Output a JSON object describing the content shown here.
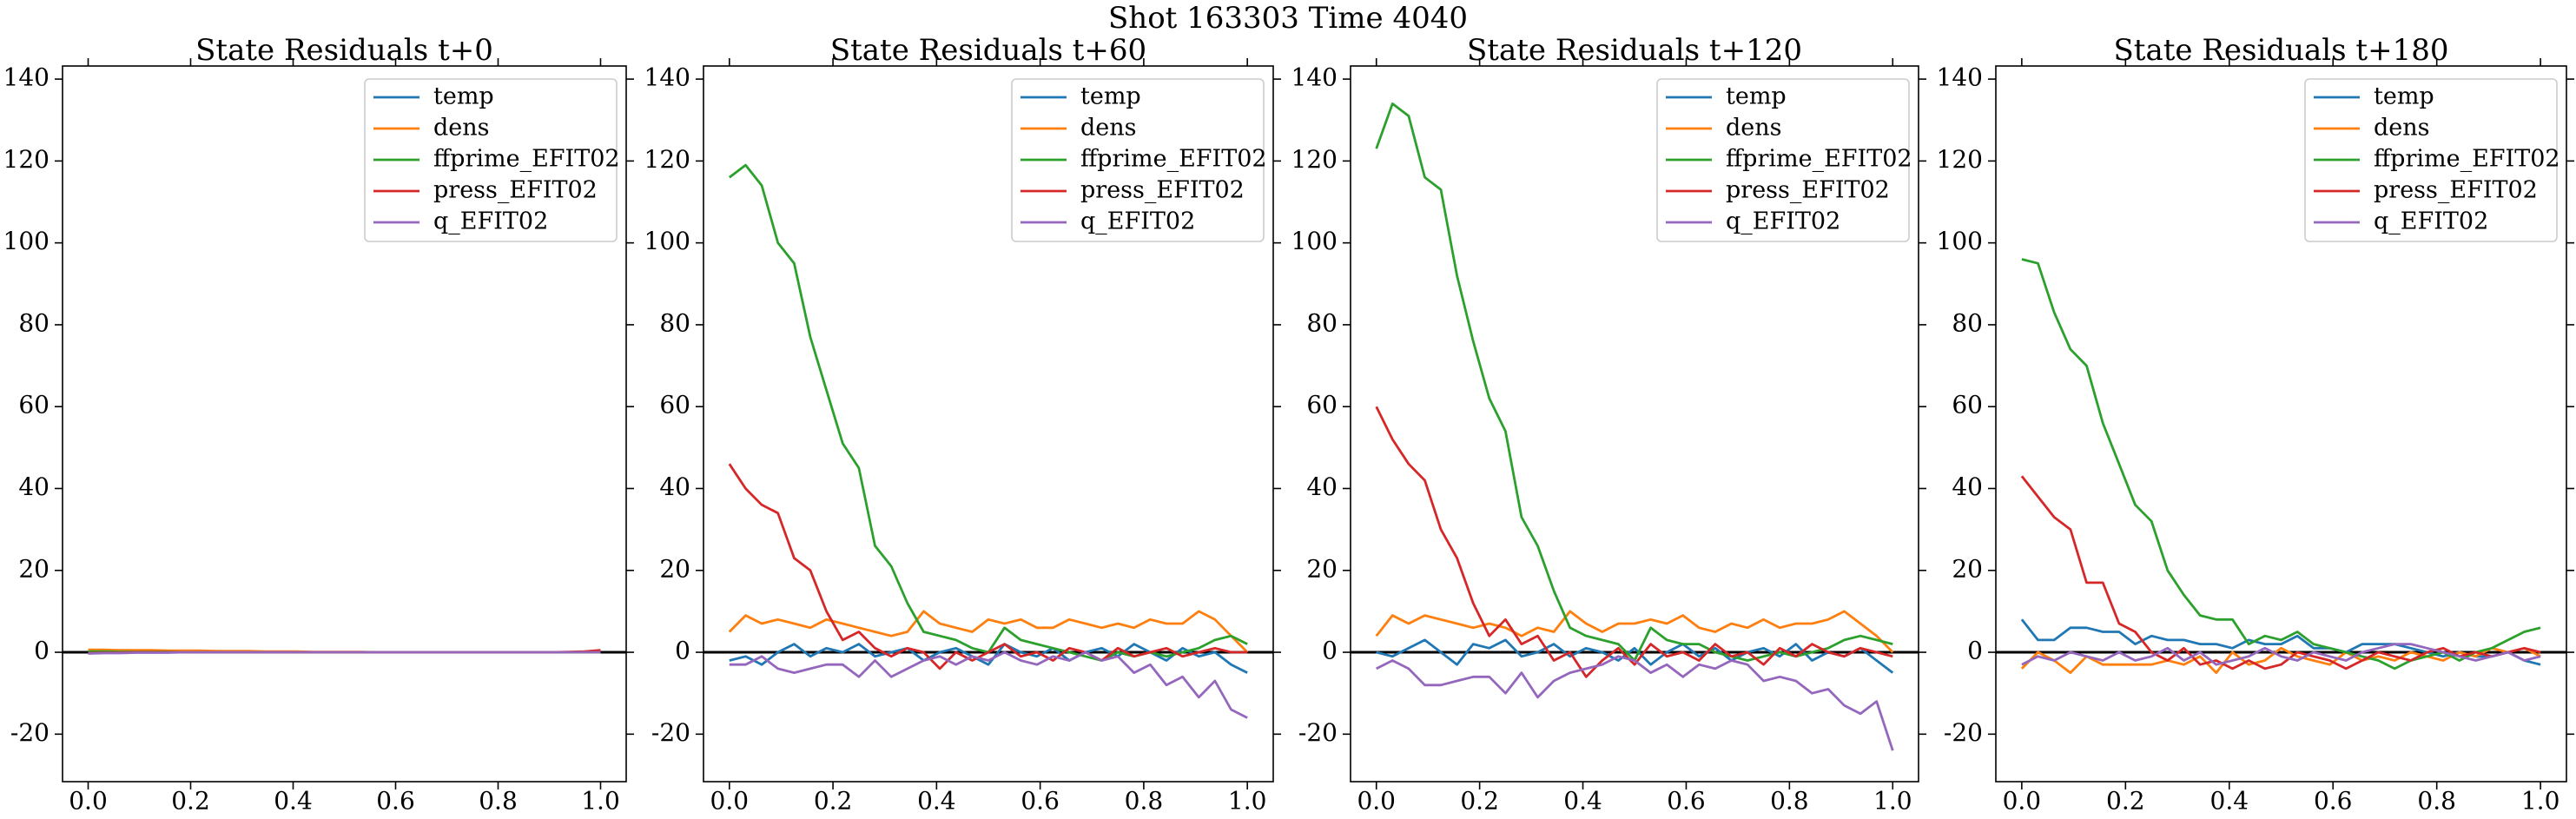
{
  "title": "Shot 163303   Time 4040",
  "chart_data": [
    {
      "type": "line",
      "title": "State Residuals t+0",
      "legend": "upper right",
      "grid": false,
      "hlines": [
        0
      ],
      "xlim": [
        -0.05,
        1.05
      ],
      "ylim": [
        -31.6,
        143.2
      ],
      "xticks": [
        {
          "value": 0,
          "label": "0.0"
        },
        0.2,
        0.4,
        0.6,
        0.8,
        {
          "value": 1,
          "label": "1.0"
        }
      ],
      "yticks": [
        -20,
        0,
        20,
        40,
        60,
        80,
        100,
        120,
        140
      ],
      "x": [
        0,
        0.03125,
        0.0625,
        0.09375,
        0.125,
        0.15625,
        0.1875,
        0.21875,
        0.25,
        0.28125,
        0.3125,
        0.34375,
        0.375,
        0.40625,
        0.4375,
        0.46875,
        0.5,
        0.53125,
        0.5625,
        0.59375,
        0.625,
        0.65625,
        0.6875,
        0.71875,
        0.75,
        0.78125,
        0.8125,
        0.84375,
        0.875,
        0.90625,
        0.9375,
        0.96875,
        1
      ],
      "series": [
        {
          "name": "temp",
          "color": "#1f77b4",
          "values": [
            0,
            0,
            0,
            0.1,
            0,
            0,
            0,
            0,
            0,
            0,
            0,
            0,
            0,
            0,
            0,
            0,
            0,
            0,
            0,
            0,
            0,
            0,
            0,
            0,
            0,
            0,
            0,
            0,
            0,
            0,
            0,
            0,
            0.2
          ]
        },
        {
          "name": "dens",
          "color": "#ff7f0e",
          "values": [
            0.6,
            0.6,
            0.5,
            0.5,
            0.5,
            0.4,
            0.4,
            0.4,
            0.3,
            0.3,
            0.3,
            0.2,
            0.2,
            0.2,
            0.1,
            0.1,
            0.1,
            0.1,
            0,
            0,
            0,
            0,
            0,
            0,
            0,
            0,
            0,
            0,
            0,
            0,
            0,
            0,
            0
          ]
        },
        {
          "name": "ffprime_EFIT02",
          "color": "#2ca02c",
          "values": [
            0.2,
            0.2,
            0.1,
            0.1,
            0.1,
            0.1,
            0,
            0,
            0,
            0,
            0,
            0,
            0,
            0,
            0,
            0,
            0,
            0,
            0,
            0,
            0,
            0,
            0,
            0,
            0,
            0,
            0,
            0,
            0,
            0,
            0,
            0,
            0
          ]
        },
        {
          "name": "press_EFIT02",
          "color": "#d62728",
          "values": [
            -0.2,
            -0.1,
            -0.1,
            0,
            0,
            0,
            0,
            0,
            0,
            0,
            0,
            0,
            0,
            0,
            0,
            0,
            0,
            0,
            0,
            0,
            0,
            0,
            0,
            0,
            0,
            0,
            0,
            0,
            0,
            0,
            0.1,
            0.2,
            0.5
          ]
        },
        {
          "name": "q_EFIT02",
          "color": "#9467bd",
          "values": [
            -0.3,
            -0.2,
            -0.2,
            -0.1,
            -0.1,
            -0.1,
            0,
            0,
            0,
            0,
            0,
            0,
            0,
            0,
            0,
            0,
            0,
            0,
            0,
            0,
            0,
            0,
            0,
            0,
            0,
            0,
            0,
            0,
            0,
            0,
            0,
            0,
            0
          ]
        }
      ]
    },
    {
      "type": "line",
      "title": "State Residuals t+60",
      "legend": "upper right",
      "grid": false,
      "hlines": [
        0
      ],
      "xlim": [
        -0.05,
        1.05
      ],
      "ylim": [
        -31.6,
        143.2
      ],
      "xticks": [
        {
          "value": 0,
          "label": "0.0"
        },
        0.2,
        0.4,
        0.6,
        0.8,
        {
          "value": 1,
          "label": "1.0"
        }
      ],
      "yticks": [
        -20,
        0,
        20,
        40,
        60,
        80,
        100,
        120,
        140
      ],
      "x": [
        0,
        0.03125,
        0.0625,
        0.09375,
        0.125,
        0.15625,
        0.1875,
        0.21875,
        0.25,
        0.28125,
        0.3125,
        0.34375,
        0.375,
        0.40625,
        0.4375,
        0.46875,
        0.5,
        0.53125,
        0.5625,
        0.59375,
        0.625,
        0.65625,
        0.6875,
        0.71875,
        0.75,
        0.78125,
        0.8125,
        0.84375,
        0.875,
        0.90625,
        0.9375,
        0.96875,
        1
      ],
      "series": [
        {
          "name": "temp",
          "color": "#1f77b4",
          "values": [
            -2,
            -1,
            -3,
            0,
            2,
            -1,
            1,
            0,
            2,
            -1,
            0,
            1,
            -2,
            0,
            1,
            -1,
            -3,
            2,
            0,
            -1,
            1,
            -2,
            0,
            1,
            -1,
            2,
            0,
            -2,
            1,
            -1,
            0,
            -3,
            -5
          ]
        },
        {
          "name": "dens",
          "color": "#ff7f0e",
          "values": [
            5,
            9,
            7,
            8,
            7,
            6,
            8,
            7,
            6,
            5,
            4,
            5,
            10,
            7,
            6,
            5,
            8,
            7,
            8,
            6,
            6,
            8,
            7,
            6,
            7,
            6,
            8,
            7,
            7,
            10,
            8,
            4,
            0
          ]
        },
        {
          "name": "ffprime_EFIT02",
          "color": "#2ca02c",
          "values": [
            116,
            119,
            114,
            100,
            95,
            77,
            64,
            51,
            45,
            26,
            21,
            12,
            5,
            4,
            3,
            1,
            0,
            6,
            3,
            2,
            1,
            0,
            -1,
            -2,
            0,
            -1,
            0,
            -1,
            0,
            1,
            3,
            4,
            2
          ]
        },
        {
          "name": "press_EFIT02",
          "color": "#d62728",
          "values": [
            46,
            40,
            36,
            34,
            23,
            20,
            10,
            3,
            5,
            1,
            -1,
            1,
            0,
            -4,
            0,
            -2,
            0,
            2,
            -1,
            0,
            -2,
            1,
            0,
            -2,
            1,
            -1,
            0,
            1,
            -1,
            0,
            1,
            0,
            0
          ]
        },
        {
          "name": "q_EFIT02",
          "color": "#9467bd",
          "values": [
            -3,
            -3,
            -1,
            -4,
            -5,
            -4,
            -3,
            -3,
            -6,
            -2,
            -6,
            -4,
            -2,
            -1,
            -3,
            -1,
            -2,
            0,
            -2,
            -3,
            -1,
            -2,
            0,
            -2,
            -1,
            -5,
            -3,
            -8,
            -6,
            -11,
            -7,
            -14,
            -16
          ]
        }
      ]
    },
    {
      "type": "line",
      "title": "State Residuals t+120",
      "legend": "upper right",
      "grid": false,
      "hlines": [
        0
      ],
      "xlim": [
        -0.05,
        1.05
      ],
      "ylim": [
        -31.6,
        143.2
      ],
      "xticks": [
        {
          "value": 0,
          "label": "0.0"
        },
        0.2,
        0.4,
        0.6,
        0.8,
        {
          "value": 1,
          "label": "1.0"
        }
      ],
      "yticks": [
        -20,
        0,
        20,
        40,
        60,
        80,
        100,
        120,
        140
      ],
      "x": [
        0,
        0.03125,
        0.0625,
        0.09375,
        0.125,
        0.15625,
        0.1875,
        0.21875,
        0.25,
        0.28125,
        0.3125,
        0.34375,
        0.375,
        0.40625,
        0.4375,
        0.46875,
        0.5,
        0.53125,
        0.5625,
        0.59375,
        0.625,
        0.65625,
        0.6875,
        0.71875,
        0.75,
        0.78125,
        0.8125,
        0.84375,
        0.875,
        0.90625,
        0.9375,
        0.96875,
        1
      ],
      "series": [
        {
          "name": "temp",
          "color": "#1f77b4",
          "values": [
            0,
            -1,
            1,
            3,
            0,
            -3,
            2,
            1,
            3,
            -1,
            0,
            2,
            -1,
            1,
            0,
            -2,
            1,
            -3,
            0,
            2,
            -1,
            1,
            -2,
            0,
            1,
            -1,
            2,
            -2,
            0,
            -1,
            1,
            -2,
            -5
          ]
        },
        {
          "name": "dens",
          "color": "#ff7f0e",
          "values": [
            4,
            9,
            7,
            9,
            8,
            7,
            6,
            7,
            6,
            4,
            6,
            5,
            10,
            7,
            5,
            7,
            7,
            8,
            7,
            9,
            6,
            5,
            7,
            6,
            8,
            6,
            7,
            7,
            8,
            10,
            7,
            4,
            0
          ]
        },
        {
          "name": "ffprime_EFIT02",
          "color": "#2ca02c",
          "values": [
            123,
            134,
            131,
            116,
            113,
            92,
            76,
            62,
            54,
            33,
            26,
            15,
            6,
            4,
            3,
            2,
            -2,
            6,
            3,
            2,
            2,
            0,
            -1,
            -2,
            -1,
            0,
            -1,
            0,
            1,
            3,
            4,
            3,
            2
          ]
        },
        {
          "name": "press_EFIT02",
          "color": "#d62728",
          "values": [
            60,
            52,
            46,
            42,
            30,
            23,
            12,
            4,
            8,
            2,
            4,
            -2,
            0,
            -6,
            -2,
            1,
            -3,
            2,
            -1,
            0,
            -2,
            2,
            -1,
            0,
            -3,
            1,
            -1,
            2,
            0,
            -1,
            1,
            0,
            -1
          ]
        },
        {
          "name": "q_EFIT02",
          "color": "#9467bd",
          "values": [
            -4,
            -2,
            -4,
            -8,
            -8,
            -7,
            -6,
            -6,
            -10,
            -5,
            -11,
            -7,
            -5,
            -4,
            -3,
            -1,
            -2,
            -5,
            -3,
            -6,
            -3,
            -4,
            -2,
            -3,
            -7,
            -6,
            -7,
            -10,
            -9,
            -13,
            -15,
            -12,
            -24
          ]
        }
      ]
    },
    {
      "type": "line",
      "title": "State Residuals t+180",
      "legend": "upper right",
      "grid": false,
      "hlines": [
        0
      ],
      "xlim": [
        -0.05,
        1.05
      ],
      "ylim": [
        -31.6,
        143.2
      ],
      "xticks": [
        {
          "value": 0,
          "label": "0.0"
        },
        0.2,
        0.4,
        0.6,
        0.8,
        {
          "value": 1,
          "label": "1.0"
        }
      ],
      "yticks": [
        -20,
        0,
        20,
        40,
        60,
        80,
        100,
        120,
        140
      ],
      "x": [
        0,
        0.03125,
        0.0625,
        0.09375,
        0.125,
        0.15625,
        0.1875,
        0.21875,
        0.25,
        0.28125,
        0.3125,
        0.34375,
        0.375,
        0.40625,
        0.4375,
        0.46875,
        0.5,
        0.53125,
        0.5625,
        0.59375,
        0.625,
        0.65625,
        0.6875,
        0.71875,
        0.75,
        0.78125,
        0.8125,
        0.84375,
        0.875,
        0.90625,
        0.9375,
        0.96875,
        1
      ],
      "series": [
        {
          "name": "temp",
          "color": "#1f77b4",
          "values": [
            8,
            3,
            3,
            6,
            6,
            5,
            5,
            2,
            4,
            3,
            3,
            2,
            2,
            1,
            3,
            2,
            2,
            4,
            1,
            1,
            0,
            2,
            2,
            2,
            1,
            0,
            -1,
            0,
            -1,
            -1,
            0,
            -2,
            -3
          ]
        },
        {
          "name": "dens",
          "color": "#ff7f0e",
          "values": [
            -4,
            0,
            -2,
            -5,
            -1,
            -3,
            -3,
            -3,
            -3,
            -2,
            -3,
            -1,
            -5,
            0,
            -3,
            -2,
            1,
            -1,
            -2,
            -3,
            0,
            -2,
            -1,
            -2,
            0,
            -1,
            -2,
            0,
            -1,
            1,
            0,
            1,
            -1
          ]
        },
        {
          "name": "ffprime_EFIT02",
          "color": "#2ca02c",
          "values": [
            96,
            95,
            83,
            74,
            70,
            56,
            46,
            36,
            32,
            20,
            14,
            9,
            8,
            8,
            2,
            4,
            3,
            5,
            2,
            1,
            0,
            -1,
            -2,
            -4,
            -2,
            -1,
            0,
            -2,
            0,
            1,
            3,
            5,
            6
          ]
        },
        {
          "name": "press_EFIT02",
          "color": "#d62728",
          "values": [
            43,
            38,
            33,
            30,
            17,
            17,
            7,
            5,
            0,
            -2,
            1,
            -3,
            -2,
            -4,
            -2,
            -4,
            -3,
            0,
            -1,
            -2,
            -4,
            -2,
            0,
            -1,
            -2,
            0,
            1,
            -1,
            0,
            -1,
            0,
            1,
            0
          ]
        },
        {
          "name": "q_EFIT02",
          "color": "#9467bd",
          "values": [
            -3,
            -1,
            -2,
            0,
            -1,
            -2,
            0,
            -2,
            -1,
            1,
            -2,
            0,
            -3,
            -2,
            -1,
            1,
            -1,
            -2,
            0,
            -1,
            -2,
            0,
            1,
            2,
            2,
            1,
            0,
            -1,
            -2,
            -1,
            0,
            -2,
            -1
          ]
        }
      ]
    }
  ]
}
